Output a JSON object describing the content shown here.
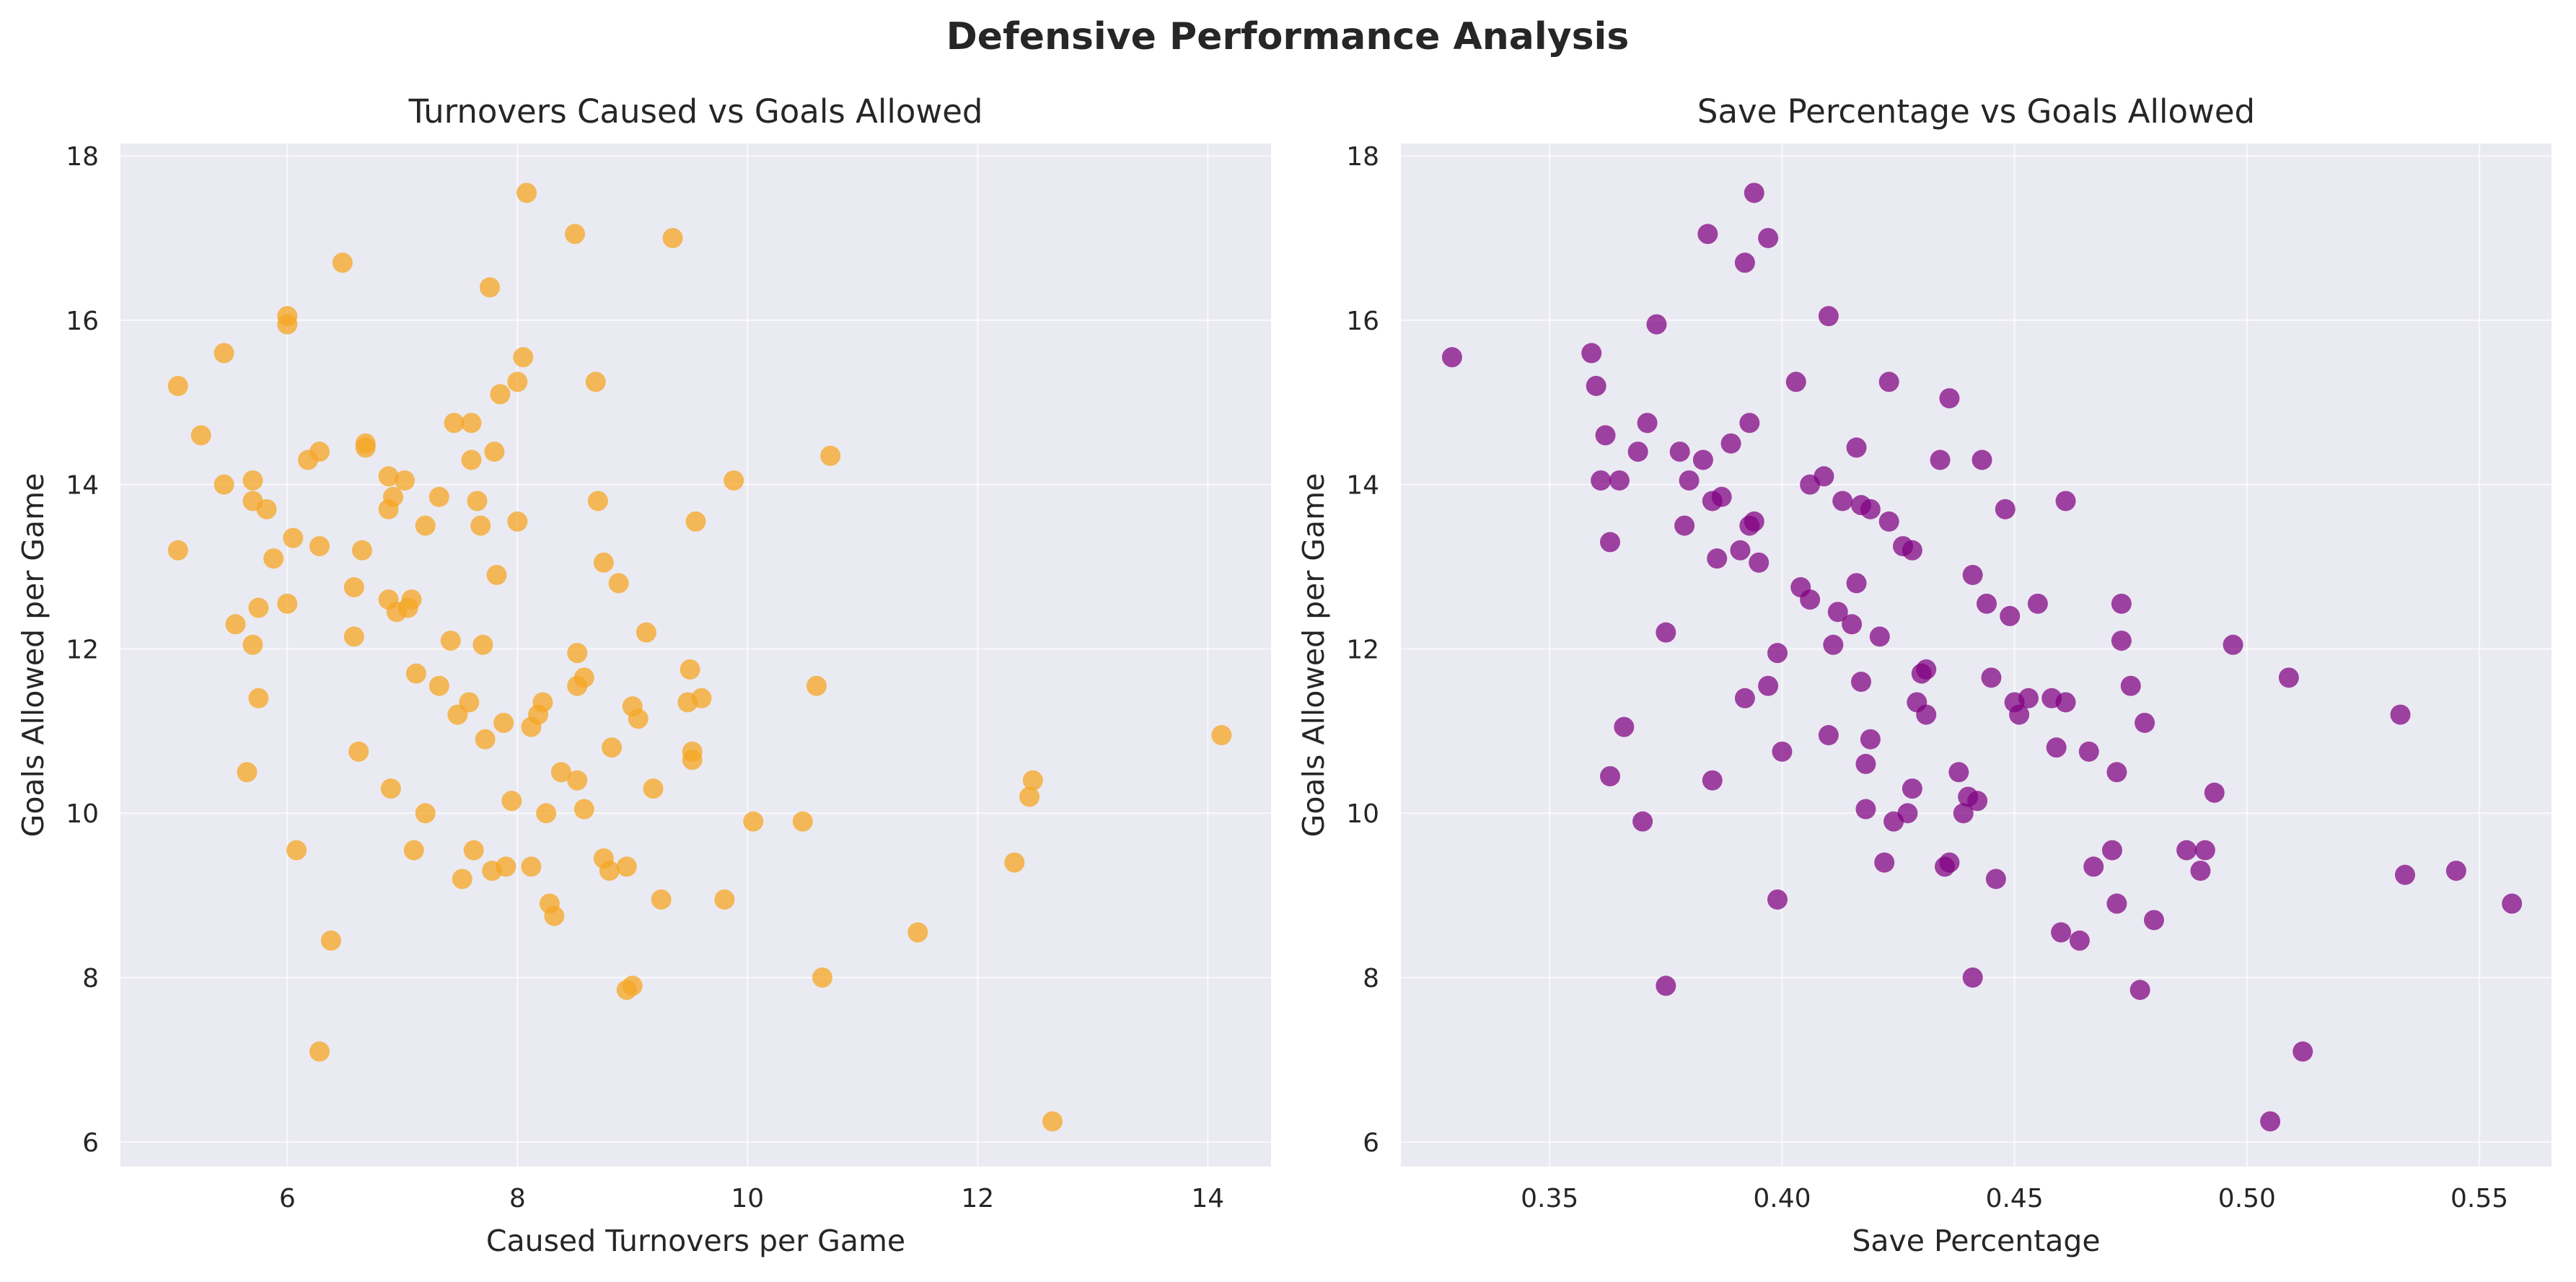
{
  "figure": {
    "title": "Defensive Performance Analysis",
    "background": "#ffffff",
    "axes_facecolor": "#eaeaf2",
    "grid_color": "#ffffff"
  },
  "chart_data": [
    {
      "type": "scatter",
      "title": "Turnovers Caused vs Goals Allowed",
      "xlabel": "Caused Turnovers per Game",
      "ylabel": "Goals Allowed per Game",
      "xlim": [
        4.55,
        14.55
      ],
      "ylim": [
        5.7,
        18.15
      ],
      "xticks": [
        6,
        8,
        10,
        12,
        14
      ],
      "yticks": [
        6,
        8,
        10,
        12,
        14,
        16,
        18
      ],
      "grid": true,
      "color": "#f5a623",
      "points": [
        [
          5.05,
          15.2
        ],
        [
          5.05,
          13.2
        ],
        [
          5.25,
          14.6
        ],
        [
          5.45,
          15.6
        ],
        [
          5.45,
          14.0
        ],
        [
          5.55,
          12.3
        ],
        [
          5.65,
          10.5
        ],
        [
          5.7,
          14.05
        ],
        [
          5.7,
          13.8
        ],
        [
          5.7,
          12.05
        ],
        [
          5.75,
          12.5
        ],
        [
          5.75,
          11.4
        ],
        [
          5.82,
          13.7
        ],
        [
          5.88,
          13.1
        ],
        [
          6.0,
          16.05
        ],
        [
          6.0,
          15.95
        ],
        [
          6.0,
          12.55
        ],
        [
          6.05,
          13.35
        ],
        [
          6.08,
          9.55
        ],
        [
          6.18,
          14.3
        ],
        [
          6.28,
          14.4
        ],
        [
          6.28,
          13.25
        ],
        [
          6.28,
          7.1
        ],
        [
          6.38,
          8.45
        ],
        [
          6.48,
          16.7
        ],
        [
          6.58,
          12.75
        ],
        [
          6.58,
          12.15
        ],
        [
          6.62,
          10.75
        ],
        [
          6.65,
          13.2
        ],
        [
          6.68,
          14.5
        ],
        [
          6.68,
          14.45
        ],
        [
          6.88,
          14.1
        ],
        [
          6.88,
          13.7
        ],
        [
          6.88,
          12.6
        ],
        [
          6.9,
          10.3
        ],
        [
          6.92,
          13.85
        ],
        [
          6.95,
          12.45
        ],
        [
          7.02,
          14.05
        ],
        [
          7.05,
          12.5
        ],
        [
          7.08,
          12.6
        ],
        [
          7.1,
          9.55
        ],
        [
          7.12,
          11.7
        ],
        [
          7.2,
          13.5
        ],
        [
          7.2,
          10.0
        ],
        [
          7.32,
          13.85
        ],
        [
          7.32,
          11.55
        ],
        [
          7.42,
          12.1
        ],
        [
          7.45,
          14.75
        ],
        [
          7.48,
          11.2
        ],
        [
          7.52,
          9.2
        ],
        [
          7.58,
          11.35
        ],
        [
          7.6,
          14.75
        ],
        [
          7.6,
          14.3
        ],
        [
          7.62,
          9.55
        ],
        [
          7.65,
          13.8
        ],
        [
          7.68,
          13.5
        ],
        [
          7.7,
          12.05
        ],
        [
          7.72,
          10.9
        ],
        [
          7.76,
          16.4
        ],
        [
          7.78,
          9.3
        ],
        [
          7.8,
          14.4
        ],
        [
          7.82,
          12.9
        ],
        [
          7.85,
          15.1
        ],
        [
          7.88,
          11.1
        ],
        [
          7.9,
          9.35
        ],
        [
          7.95,
          10.15
        ],
        [
          8.0,
          15.25
        ],
        [
          8.0,
          13.55
        ],
        [
          8.05,
          15.55
        ],
        [
          8.08,
          17.55
        ],
        [
          8.12,
          11.05
        ],
        [
          8.12,
          9.35
        ],
        [
          8.18,
          11.2
        ],
        [
          8.22,
          11.35
        ],
        [
          8.25,
          10.0
        ],
        [
          8.28,
          8.9
        ],
        [
          8.32,
          8.75
        ],
        [
          8.38,
          10.5
        ],
        [
          8.5,
          17.05
        ],
        [
          8.52,
          11.95
        ],
        [
          8.52,
          11.55
        ],
        [
          8.52,
          10.4
        ],
        [
          8.58,
          11.65
        ],
        [
          8.58,
          10.05
        ],
        [
          8.68,
          15.25
        ],
        [
          8.7,
          13.8
        ],
        [
          8.75,
          13.05
        ],
        [
          8.75,
          9.45
        ],
        [
          8.8,
          9.3
        ],
        [
          8.82,
          10.8
        ],
        [
          8.88,
          12.8
        ],
        [
          8.95,
          9.35
        ],
        [
          8.95,
          7.85
        ],
        [
          9.0,
          7.9
        ],
        [
          9.0,
          11.3
        ],
        [
          9.05,
          11.15
        ],
        [
          9.12,
          12.2
        ],
        [
          9.18,
          10.3
        ],
        [
          9.25,
          8.95
        ],
        [
          9.35,
          17.0
        ],
        [
          9.48,
          11.35
        ],
        [
          9.5,
          11.75
        ],
        [
          9.52,
          10.75
        ],
        [
          9.52,
          10.65
        ],
        [
          9.55,
          13.55
        ],
        [
          9.6,
          11.4
        ],
        [
          9.8,
          8.95
        ],
        [
          9.88,
          14.05
        ],
        [
          10.05,
          9.9
        ],
        [
          10.48,
          9.9
        ],
        [
          10.6,
          11.55
        ],
        [
          10.65,
          8.0
        ],
        [
          10.72,
          14.35
        ],
        [
          11.48,
          8.55
        ],
        [
          12.32,
          9.4
        ],
        [
          12.45,
          10.2
        ],
        [
          12.48,
          10.4
        ],
        [
          12.65,
          6.25
        ],
        [
          14.12,
          10.95
        ]
      ]
    },
    {
      "type": "scatter",
      "title": "Save Percentage vs Goals Allowed",
      "xlabel": "Save Percentage",
      "ylabel": "Goals Allowed per Game",
      "xlim": [
        0.318,
        0.5655
      ],
      "ylim": [
        5.7,
        18.15
      ],
      "xticks": [
        "0.35",
        "0.40",
        "0.45",
        "0.50",
        "0.55"
      ],
      "xtick_values": [
        0.35,
        0.4,
        0.45,
        0.5,
        0.55
      ],
      "yticks": [
        6,
        8,
        10,
        12,
        14,
        16,
        18
      ],
      "grid": true,
      "color": "#800080",
      "points": [
        [
          0.329,
          15.55
        ],
        [
          0.359,
          15.6
        ],
        [
          0.36,
          15.2
        ],
        [
          0.361,
          14.05
        ],
        [
          0.362,
          14.6
        ],
        [
          0.363,
          13.3
        ],
        [
          0.363,
          10.45
        ],
        [
          0.365,
          14.05
        ],
        [
          0.366,
          11.05
        ],
        [
          0.369,
          14.4
        ],
        [
          0.37,
          9.9
        ],
        [
          0.371,
          14.75
        ],
        [
          0.373,
          15.95
        ],
        [
          0.375,
          12.2
        ],
        [
          0.375,
          7.9
        ],
        [
          0.378,
          14.4
        ],
        [
          0.379,
          13.5
        ],
        [
          0.38,
          14.05
        ],
        [
          0.383,
          14.3
        ],
        [
          0.384,
          17.05
        ],
        [
          0.385,
          13.8
        ],
        [
          0.385,
          10.4
        ],
        [
          0.386,
          13.1
        ],
        [
          0.387,
          13.85
        ],
        [
          0.389,
          14.5
        ],
        [
          0.391,
          13.2
        ],
        [
          0.392,
          16.7
        ],
        [
          0.392,
          11.4
        ],
        [
          0.393,
          14.75
        ],
        [
          0.393,
          13.5
        ],
        [
          0.394,
          17.55
        ],
        [
          0.394,
          13.55
        ],
        [
          0.395,
          13.05
        ],
        [
          0.397,
          17.0
        ],
        [
          0.397,
          11.55
        ],
        [
          0.399,
          11.95
        ],
        [
          0.399,
          8.95
        ],
        [
          0.4,
          10.75
        ],
        [
          0.403,
          15.25
        ],
        [
          0.404,
          12.75
        ],
        [
          0.406,
          12.6
        ],
        [
          0.406,
          14.0
        ],
        [
          0.409,
          14.1
        ],
        [
          0.41,
          16.05
        ],
        [
          0.41,
          10.95
        ],
        [
          0.411,
          12.05
        ],
        [
          0.412,
          12.45
        ],
        [
          0.413,
          13.8
        ],
        [
          0.415,
          12.3
        ],
        [
          0.416,
          14.45
        ],
        [
          0.416,
          12.8
        ],
        [
          0.417,
          13.75
        ],
        [
          0.417,
          11.6
        ],
        [
          0.418,
          10.05
        ],
        [
          0.418,
          10.6
        ],
        [
          0.419,
          13.7
        ],
        [
          0.419,
          10.9
        ],
        [
          0.421,
          12.15
        ],
        [
          0.422,
          9.4
        ],
        [
          0.423,
          15.25
        ],
        [
          0.423,
          13.55
        ],
        [
          0.424,
          9.9
        ],
        [
          0.426,
          13.25
        ],
        [
          0.427,
          10.0
        ],
        [
          0.428,
          13.2
        ],
        [
          0.428,
          10.3
        ],
        [
          0.429,
          11.35
        ],
        [
          0.43,
          11.7
        ],
        [
          0.431,
          11.75
        ],
        [
          0.431,
          11.2
        ],
        [
          0.434,
          14.3
        ],
        [
          0.435,
          9.35
        ],
        [
          0.436,
          15.05
        ],
        [
          0.436,
          9.4
        ],
        [
          0.438,
          10.5
        ],
        [
          0.439,
          10.0
        ],
        [
          0.44,
          10.2
        ],
        [
          0.441,
          12.9
        ],
        [
          0.441,
          8.0
        ],
        [
          0.442,
          10.15
        ],
        [
          0.443,
          14.3
        ],
        [
          0.444,
          12.55
        ],
        [
          0.445,
          11.65
        ],
        [
          0.446,
          9.2
        ],
        [
          0.448,
          13.7
        ],
        [
          0.449,
          12.4
        ],
        [
          0.45,
          11.35
        ],
        [
          0.451,
          11.2
        ],
        [
          0.453,
          11.4
        ],
        [
          0.455,
          12.55
        ],
        [
          0.458,
          11.4
        ],
        [
          0.459,
          10.8
        ],
        [
          0.46,
          8.55
        ],
        [
          0.461,
          11.35
        ],
        [
          0.461,
          13.8
        ],
        [
          0.464,
          8.45
        ],
        [
          0.466,
          10.75
        ],
        [
          0.467,
          9.35
        ],
        [
          0.471,
          9.55
        ],
        [
          0.472,
          10.5
        ],
        [
          0.472,
          8.9
        ],
        [
          0.473,
          12.55
        ],
        [
          0.473,
          12.1
        ],
        [
          0.475,
          11.55
        ],
        [
          0.477,
          7.85
        ],
        [
          0.478,
          11.1
        ],
        [
          0.48,
          8.7
        ],
        [
          0.487,
          9.55
        ],
        [
          0.49,
          9.3
        ],
        [
          0.491,
          9.55
        ],
        [
          0.493,
          10.25
        ],
        [
          0.497,
          12.05
        ],
        [
          0.505,
          6.25
        ],
        [
          0.509,
          11.65
        ],
        [
          0.512,
          7.1
        ],
        [
          0.533,
          11.2
        ],
        [
          0.534,
          9.25
        ],
        [
          0.545,
          9.3
        ],
        [
          0.557,
          8.9
        ]
      ]
    }
  ]
}
